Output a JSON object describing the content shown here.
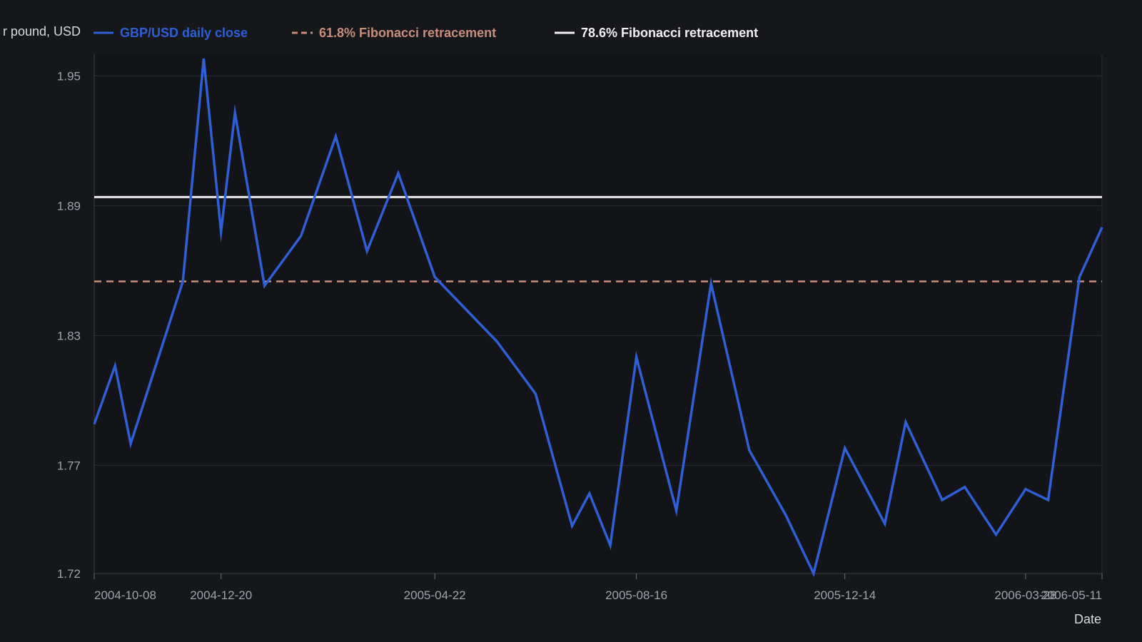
{
  "colors": {
    "background": "#15171b",
    "plot_background": "#121418",
    "grid": "#2a2d33",
    "axis_text": "#9ea3ab",
    "close_line": "#2f5fd7",
    "fib_618": "#c98e7a",
    "fib_786": "#f2f2f2"
  },
  "chart_data": {
    "type": "line",
    "xlabel": "Date",
    "ylabel": "r pound, USD",
    "ylim": [
      1.72,
      1.96
    ],
    "yticks": [
      1.72,
      1.77,
      1.83,
      1.89,
      1.95
    ],
    "ytick_labels": [
      "1.72",
      "1.77",
      "1.83",
      "1.89",
      "1.95"
    ],
    "xlim": [
      "2004-10-08",
      "2006-05-11"
    ],
    "xticks": [
      "2004-10-08",
      "2004-12-20",
      "2005-04-22",
      "2005-08-16",
      "2005-12-14",
      "2006-03-28",
      "2006-05-11"
    ],
    "xtick_labels": [
      "2004-10-08",
      "2004-12-20",
      "2005-04-22",
      "2005-08-16",
      "2005-12-14",
      "2006-03-28",
      "2006-05-11"
    ],
    "grid": true,
    "legend_position": "top",
    "series": [
      {
        "name": "GBP/USD daily close",
        "style": "solid",
        "color": "#2f5fd7",
        "points": [
          [
            "2004-10-08",
            1.789
          ],
          [
            "2004-10-20",
            1.816
          ],
          [
            "2004-10-29",
            1.78
          ],
          [
            "2004-11-28",
            1.855
          ],
          [
            "2004-12-10",
            1.958
          ],
          [
            "2004-12-20",
            1.878
          ],
          [
            "2004-12-28",
            1.933
          ],
          [
            "2005-01-14",
            1.853
          ],
          [
            "2005-02-04",
            1.876
          ],
          [
            "2005-02-24",
            1.922
          ],
          [
            "2005-03-14",
            1.869
          ],
          [
            "2005-04-01",
            1.905
          ],
          [
            "2005-04-22",
            1.857
          ],
          [
            "2005-05-28",
            1.827
          ],
          [
            "2005-06-19",
            1.803
          ],
          [
            "2005-07-10",
            1.742
          ],
          [
            "2005-07-20",
            1.757
          ],
          [
            "2005-08-01",
            1.733
          ],
          [
            "2005-08-16",
            1.82
          ],
          [
            "2005-09-08",
            1.749
          ],
          [
            "2005-09-28",
            1.854
          ],
          [
            "2005-10-20",
            1.777
          ],
          [
            "2005-11-10",
            1.747
          ],
          [
            "2005-11-26",
            1.72
          ],
          [
            "2005-12-14",
            1.778
          ],
          [
            "2006-01-06",
            1.743
          ],
          [
            "2006-01-18",
            1.79
          ],
          [
            "2006-02-08",
            1.754
          ],
          [
            "2006-02-21",
            1.76
          ],
          [
            "2006-03-11",
            1.738
          ],
          [
            "2006-03-28",
            1.759
          ],
          [
            "2006-04-10",
            1.754
          ],
          [
            "2006-04-28",
            1.857
          ],
          [
            "2006-05-11",
            1.88
          ]
        ]
      },
      {
        "name": "61.8% Fibonacci retracement",
        "style": "dashed",
        "color": "#c98e7a",
        "value": 1.855
      },
      {
        "name": "78.6% Fibonacci retracement",
        "style": "solid",
        "color": "#f2f2f2",
        "value": 1.894
      }
    ]
  }
}
